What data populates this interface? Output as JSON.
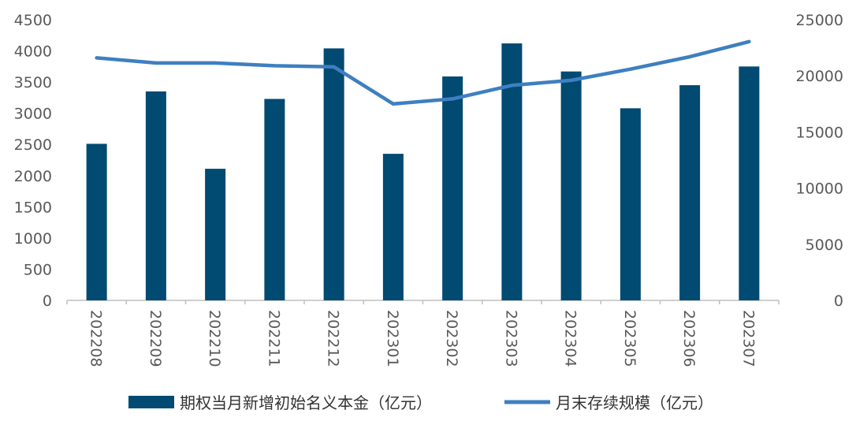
{
  "chart_data": {
    "type": "bar",
    "categories": [
      "202208",
      "202209",
      "202210",
      "202211",
      "202212",
      "202301",
      "202302",
      "202303",
      "202304",
      "202305",
      "202306",
      "202307"
    ],
    "series": [
      {
        "name": "期权当月新增初始名义本金（亿元）",
        "type": "bar",
        "axis": "left",
        "color": "#014a72",
        "values": [
          2510,
          3350,
          2110,
          3230,
          4040,
          2350,
          3590,
          4120,
          3670,
          3080,
          3450,
          3750
        ]
      },
      {
        "name": "月末存续规模（亿元）",
        "type": "line",
        "axis": "right",
        "color": "#3e7fc1",
        "values": [
          21600,
          21150,
          21150,
          20900,
          20800,
          17500,
          17950,
          19150,
          19600,
          20600,
          21700,
          23050
        ]
      }
    ],
    "left_axis": {
      "min": 0,
      "max": 4500,
      "ticks": [
        "0",
        "500",
        "1000",
        "1500",
        "2000",
        "2500",
        "3000",
        "3500",
        "4000",
        "4500"
      ]
    },
    "right_axis": {
      "min": 0,
      "max": 25000,
      "ticks": [
        "0",
        "5000",
        "10000",
        "15000",
        "20000",
        "25000"
      ]
    },
    "legend": {
      "bar_label": "期权当月新增初始名义本金（亿元）",
      "line_label": "月末存续规模（亿元）",
      "position": "bottom"
    },
    "grid": false
  }
}
